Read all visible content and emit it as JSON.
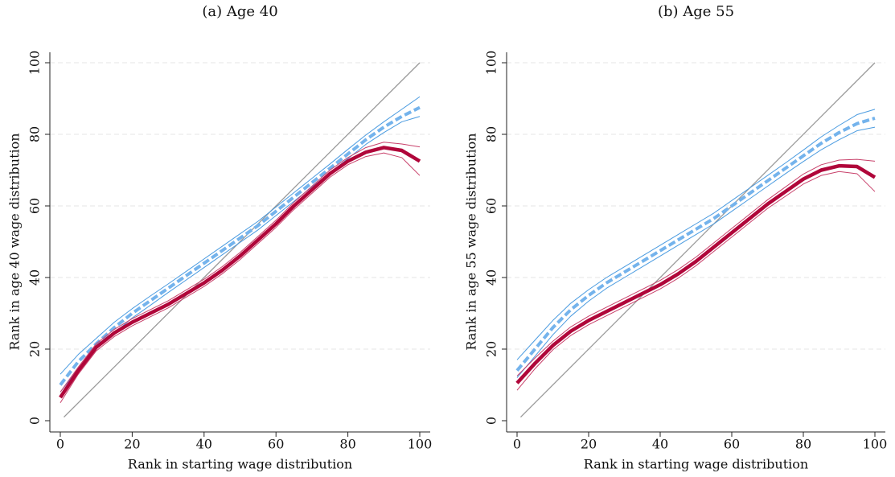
{
  "chart_data": [
    {
      "type": "line",
      "title": "(a) Age 40",
      "xlabel": "Rank in starting wage distribution",
      "ylabel": "Rank in age 40 wage distribution",
      "x": [
        0,
        5,
        10,
        15,
        20,
        25,
        30,
        35,
        40,
        45,
        50,
        55,
        60,
        65,
        70,
        75,
        80,
        85,
        90,
        95,
        100
      ],
      "xlim": [
        0,
        100
      ],
      "ylim": [
        0,
        100
      ],
      "xticks": [
        0,
        20,
        40,
        60,
        80,
        100
      ],
      "yticks": [
        0,
        20,
        40,
        60,
        80,
        100
      ],
      "grid": true,
      "series": [
        {
          "color": "#999999",
          "width": 1.3,
          "x": [
            1,
            100
          ],
          "values": [
            1,
            100
          ]
        },
        {
          "color": "#4a9be0",
          "width": 1,
          "values": [
            13,
            18.5,
            23,
            27.5,
            31.3,
            34.8,
            38.2,
            41.7,
            45.2,
            48.7,
            52.2,
            55.7,
            59.7,
            63.7,
            67.7,
            71.7,
            75.8,
            79.8,
            83.5,
            87,
            90.5
          ]
        },
        {
          "color": "#4a9be0",
          "width": 1,
          "values": [
            8,
            14.5,
            20,
            24.5,
            28.7,
            32.2,
            35.8,
            39.3,
            42.8,
            46.3,
            49.8,
            53.3,
            57.3,
            61.3,
            65.3,
            69.3,
            73.2,
            77.2,
            80.5,
            83.5,
            85
          ]
        },
        {
          "color": "#74b3ec",
          "width": 4,
          "dash": true,
          "values": [
            10,
            16.5,
            21.5,
            26,
            30,
            33.5,
            37,
            40.5,
            44,
            47.5,
            51,
            54.5,
            58.5,
            62.5,
            66.5,
            70.5,
            74.5,
            78.5,
            82,
            85,
            87.5
          ]
        },
        {
          "color": "#c8406a",
          "width": 1,
          "values": [
            8,
            15,
            21.5,
            25.5,
            28.5,
            31,
            33.5,
            36.5,
            39.5,
            43,
            47,
            51.5,
            56,
            61,
            65.5,
            70,
            73.5,
            76.3,
            77.8,
            77.3,
            76.5
          ]
        },
        {
          "color": "#c8406a",
          "width": 1,
          "values": [
            5,
            13,
            19.5,
            23.5,
            26.5,
            29,
            31.5,
            34.5,
            37.5,
            41,
            45,
            49.5,
            54,
            59,
            63.5,
            68,
            71.5,
            73.8,
            74.8,
            73.5,
            68.5
          ]
        },
        {
          "color": "#b0063a",
          "width": 4.5,
          "values": [
            6.5,
            14,
            20.5,
            24.5,
            27.5,
            30,
            32.5,
            35.5,
            38.5,
            42,
            46,
            50.5,
            55,
            60,
            64.5,
            69,
            72.5,
            75,
            76.3,
            75.5,
            72.5
          ]
        }
      ]
    },
    {
      "type": "line",
      "title": "(b) Age 55",
      "xlabel": "Rank in starting wage distribution",
      "ylabel": "Rank in age 55 wage distribution",
      "x": [
        0,
        5,
        10,
        15,
        20,
        25,
        30,
        35,
        40,
        45,
        50,
        55,
        60,
        65,
        70,
        75,
        80,
        85,
        90,
        95,
        100
      ],
      "xlim": [
        0,
        100
      ],
      "ylim": [
        0,
        100
      ],
      "xticks": [
        0,
        20,
        40,
        60,
        80,
        100
      ],
      "yticks": [
        0,
        20,
        40,
        60,
        80,
        100
      ],
      "grid": true,
      "series": [
        {
          "color": "#999999",
          "width": 1.3,
          "x": [
            1,
            100
          ],
          "values": [
            1,
            100
          ]
        },
        {
          "color": "#4a9be0",
          "width": 1,
          "values": [
            17,
            22.5,
            28,
            32.8,
            36.6,
            40,
            43,
            46,
            49,
            52,
            55,
            58,
            61.5,
            65,
            68.5,
            72,
            75.6,
            79.3,
            82.5,
            85.5,
            87
          ]
        },
        {
          "color": "#4a9be0",
          "width": 1,
          "values": [
            12,
            18,
            24,
            29.2,
            33.4,
            37,
            40,
            43,
            46,
            49,
            52,
            55,
            58.5,
            62,
            65.5,
            69,
            72.4,
            75.7,
            78.5,
            81,
            82
          ]
        },
        {
          "color": "#74b3ec",
          "width": 4,
          "dash": true,
          "values": [
            14,
            20,
            26,
            31,
            35,
            38.5,
            41.5,
            44.5,
            47.5,
            50.5,
            53.5,
            56.5,
            60,
            63.5,
            67,
            70.5,
            74,
            77.5,
            80.5,
            83,
            84.5
          ]
        },
        {
          "color": "#c8406a",
          "width": 1,
          "values": [
            12.5,
            17.5,
            22.2,
            26.2,
            29.2,
            31.7,
            34.2,
            36.7,
            39.2,
            42.2,
            45.7,
            49.7,
            53.7,
            57.7,
            61.7,
            65.3,
            68.9,
            71.5,
            72.8,
            73,
            72.5
          ]
        },
        {
          "color": "#c8406a",
          "width": 1,
          "values": [
            8.5,
            14.5,
            19.8,
            23.8,
            26.8,
            29.3,
            31.8,
            34.3,
            36.8,
            39.8,
            43.3,
            47.3,
            51.3,
            55.3,
            59.3,
            62.7,
            66.1,
            68.5,
            69.6,
            69,
            64
          ]
        },
        {
          "color": "#b0063a",
          "width": 4.5,
          "values": [
            10.5,
            16,
            21,
            25,
            28,
            30.5,
            33,
            35.5,
            38,
            41,
            44.5,
            48.5,
            52.5,
            56.5,
            60.5,
            64,
            67.5,
            70,
            71.2,
            71,
            68
          ]
        }
      ]
    }
  ]
}
